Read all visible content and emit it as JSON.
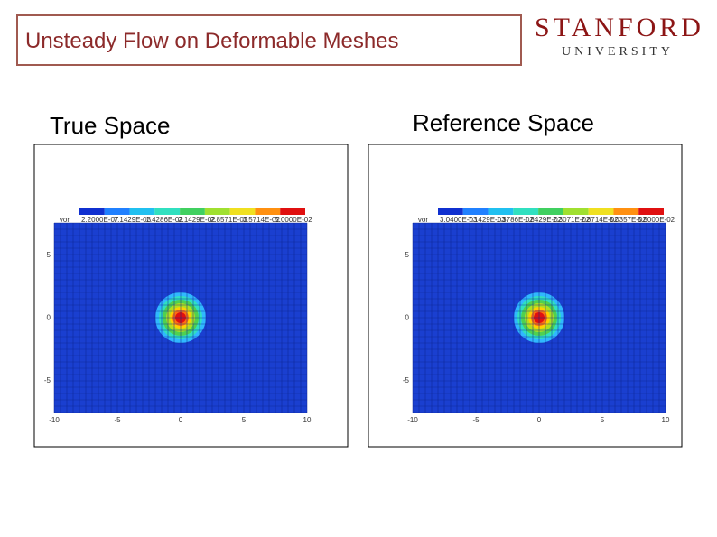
{
  "header": {
    "title": "Unsteady Flow on Deformable Meshes",
    "logo": {
      "name": "STANFORD",
      "subtitle": "UNIVERSITY"
    }
  },
  "panels": [
    {
      "label": "True Space",
      "colorbar_title": "vor",
      "colorbar_labels": [
        "2.2000E-07",
        "7.1429E-03",
        "1.4286E-02",
        "2.1429E-02",
        "2.8571E-02",
        "3.5714E-02",
        "5.0000E-02"
      ],
      "x_ticks": [
        -10,
        -5,
        0,
        5,
        10
      ],
      "y_ticks": [
        5,
        0,
        -5
      ]
    },
    {
      "label": "Reference Space",
      "colorbar_title": "vor",
      "colorbar_labels": [
        "3.0400E-03",
        "7.1429E-03",
        "1.3786E-02",
        "1.8429E-02",
        "2.3071E-02",
        "2.8714E-02",
        "3.0357E-02",
        "3.5000E-02"
      ],
      "x_ticks": [
        -10,
        -5,
        0,
        5,
        10
      ],
      "y_ticks": [
        5,
        0,
        -5
      ]
    }
  ]
}
